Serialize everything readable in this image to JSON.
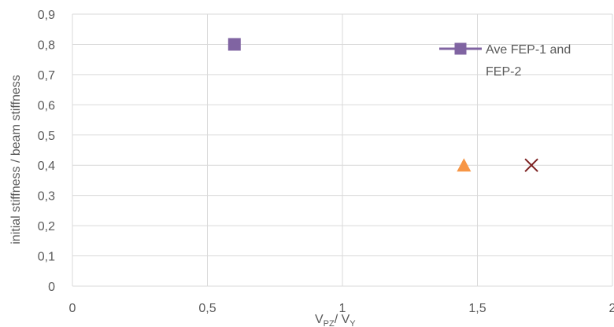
{
  "chart_data": {
    "type": "scatter",
    "xlim": [
      0,
      2
    ],
    "ylim": [
      0,
      0.9
    ],
    "x_ticks": [
      0,
      0.5,
      1,
      1.5,
      2
    ],
    "x_tick_labels": [
      "0",
      "0,5",
      "1",
      "1,5",
      "2"
    ],
    "y_ticks": [
      0,
      0.1,
      0.2,
      0.3,
      0.4,
      0.5,
      0.6,
      0.7,
      0.8,
      0.9
    ],
    "y_tick_labels": [
      "0",
      "0,1",
      "0,2",
      "0,3",
      "0,4",
      "0,5",
      "0,6",
      "0,7",
      "0,8",
      "0,9"
    ],
    "xlabel": {
      "main": "V",
      "sub1": "PZ",
      "mid": "/ V",
      "sub2": "Y"
    },
    "ylabel": "initial stiffness / beam stiffness",
    "grid": true,
    "legend": {
      "position": "top-right",
      "line1": "Ave FEP-1 and",
      "line2": "FEP-2"
    },
    "series": [
      {
        "name": "Ave FEP-1 and FEP-2",
        "marker": "square",
        "color": "#8064A2",
        "points": [
          {
            "x": 0.6,
            "y": 0.8
          }
        ]
      },
      {
        "marker": "triangle",
        "color": "#F79646",
        "points": [
          {
            "x": 1.45,
            "y": 0.4
          }
        ]
      },
      {
        "marker": "x",
        "color": "#7B1F1F",
        "points": [
          {
            "x": 1.7,
            "y": 0.4
          }
        ]
      }
    ]
  }
}
